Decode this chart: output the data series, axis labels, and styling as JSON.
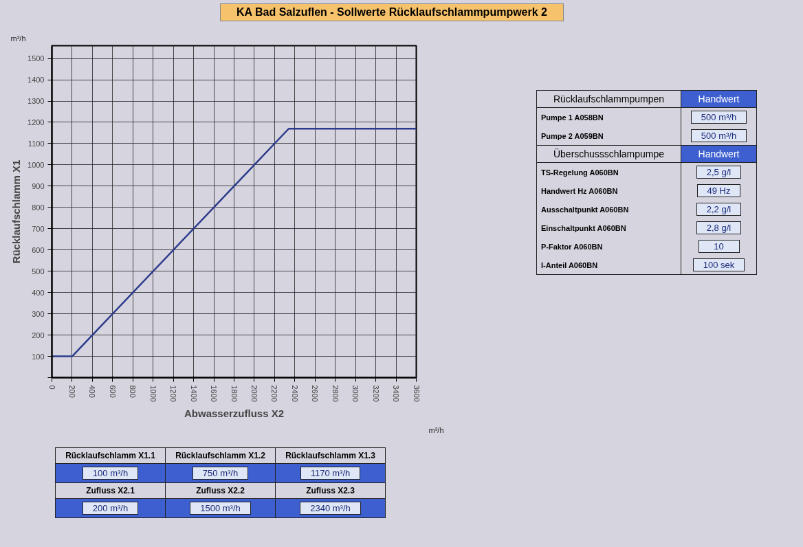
{
  "chart_data": {
    "type": "line",
    "title": "KA Bad Salzuflen - Sollwerte Rücklaufschlammpumpwerk 2",
    "xlabel": "Abwasserzufluss X2",
    "ylabel": "Rücklaufschlamm X1",
    "x": [
      0,
      200,
      2340,
      3600
    ],
    "series": [
      {
        "color": "#2b3a8c",
        "values": [
          100,
          100,
          1170,
          1170
        ]
      }
    ],
    "xlim": [
      0,
      3600
    ],
    "ylim": [
      0,
      1560
    ],
    "xticks": [
      0,
      200,
      400,
      600,
      800,
      1000,
      1200,
      1400,
      1600,
      1800,
      2000,
      2200,
      2400,
      2600,
      2800,
      3000,
      3200,
      3400,
      3600
    ],
    "yticks": [
      {
        "value": 0,
        "label": null
      },
      100,
      200,
      300,
      400,
      500,
      600,
      700,
      800,
      900,
      1000,
      1100,
      1200,
      1300,
      1400,
      1500
    ],
    "grid": true,
    "marker": "none",
    "line_style": "solid",
    "annotations": [
      "m³/h",
      "m³/h",
      "Rücklaufschlamm X1.1",
      "Rücklaufschlamm X1.2",
      "Rücklaufschlamm X1.3",
      "100  m³/h",
      "750  m³/h",
      "1170  m³/h",
      "Zufluss X2.1",
      "Zufluss X2.2",
      "Zufluss X2.3",
      "200  m³/h",
      "1500  m³/h",
      "2340  m³/h",
      "Rücklaufschlammpumpen",
      "Handwert",
      "Pumpe 1 A058BN",
      "500  m³/h",
      "Pumpe 2 A059BN",
      "500  m³/h",
      "Überschussschlampumpe",
      "Handwert",
      "TS-Regelung A060BN",
      "2,5  g/l",
      "Handwert Hz A060BN",
      "49  Hz",
      "Ausschaltpunkt A060BN",
      "2,2  g/l",
      "Einschaltpunkt A060BN",
      "2,8  g/l",
      "P-Faktor A060BN",
      "10",
      "I-Anteil A060BN",
      "100  sek"
    ]
  }
}
